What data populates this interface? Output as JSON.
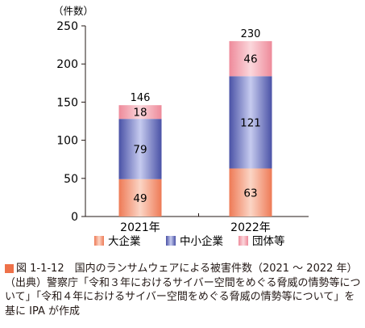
{
  "chart_data": {
    "type": "bar",
    "stacked": true,
    "categories": [
      "2021年",
      "2022年"
    ],
    "series": [
      {
        "name": "大企業",
        "values": [
          49,
          63
        ]
      },
      {
        "name": "中小企業",
        "values": [
          79,
          121
        ]
      },
      {
        "name": "団体等",
        "values": [
          18,
          46
        ]
      }
    ],
    "totals": [
      146,
      230
    ],
    "ylabel": "（件数）",
    "xlabel": "",
    "ylim": [
      0,
      250
    ],
    "yticks": [
      0,
      50,
      100,
      150,
      200,
      250
    ],
    "grid": false,
    "legend_position": "bottom",
    "colors": {
      "大企業": [
        "#ee7a56",
        "#fbd5c5"
      ],
      "中小企業": [
        "#4a52a6",
        "#c6cbef"
      ],
      "団体等": [
        "#ee8a9a",
        "#fbd7dc"
      ]
    }
  },
  "caption": {
    "title": "図 1-1-12　国内のランサムウェアによる被害件数（2021 ～ 2022 年）",
    "source": "（出典）警察庁「令和３年におけるサイバー空間をめぐる脅威の情勢等について」「令和４年におけるサイバー空間をめぐる脅威の情勢等について」を基に IPA が作成"
  }
}
